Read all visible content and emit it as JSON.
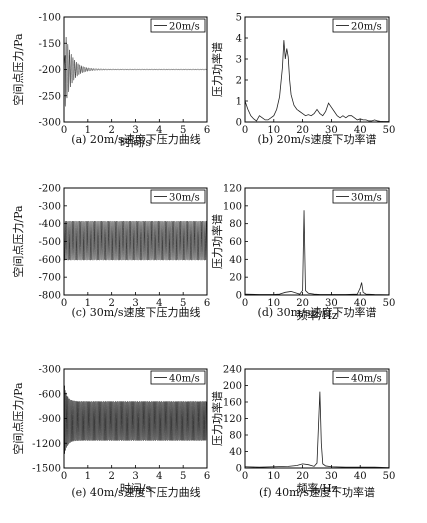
{
  "panels": [
    {
      "id": "a",
      "caption": "(a) 20m/s速度下压力曲线",
      "chart_data": {
        "type": "line",
        "title": "",
        "xlabel": "时间/s",
        "ylabel": "空间点压力/Pa",
        "xlim": [
          0,
          6
        ],
        "ylim": [
          -300,
          -100
        ],
        "xticks": [
          0,
          1,
          2,
          3,
          4,
          5,
          6
        ],
        "yticks": [
          -300,
          -250,
          -200,
          -150,
          -100
        ],
        "series": [
          {
            "name": "20m/s",
            "signal": "damped_oscillation",
            "mean": -200,
            "initial_amplitude": 85,
            "steady_amplitude": 1,
            "frequency_hz": 14
          }
        ],
        "grid": false,
        "legend": "top-right"
      }
    },
    {
      "id": "b",
      "caption": "(b) 20m/s速度下功率谱",
      "chart_data": {
        "type": "line",
        "title": "",
        "xlabel": "",
        "ylabel": "压力功率谱",
        "xlim": [
          0,
          50
        ],
        "ylim": [
          0,
          5
        ],
        "xticks": [
          0,
          10,
          20,
          30,
          40,
          50
        ],
        "yticks": [
          0,
          1,
          2,
          3,
          4,
          5
        ],
        "series": [
          {
            "name": "20m/s",
            "x": [
              0,
              1,
              2,
              3,
              4,
              5,
              6,
              7,
              8,
              9,
              10,
              11,
              12,
              13,
              13.5,
              14,
              14.5,
              15,
              15.5,
              16,
              17,
              18,
              19,
              20,
              21,
              22,
              23,
              24,
              25,
              26,
              27,
              28,
              29,
              30,
              31,
              32,
              33,
              34,
              35,
              36,
              37,
              38,
              39,
              40,
              41,
              42,
              43,
              44,
              45,
              46,
              47,
              48,
              49,
              50
            ],
            "values": [
              1.0,
              0.6,
              0.3,
              0.15,
              0.05,
              0.3,
              0.2,
              0.1,
              0.1,
              0.2,
              0.3,
              0.6,
              1.2,
              2.6,
              3.9,
              3.0,
              3.5,
              3.1,
              2.0,
              1.3,
              0.8,
              0.6,
              0.5,
              0.4,
              0.3,
              0.35,
              0.3,
              0.4,
              0.6,
              0.4,
              0.3,
              0.5,
              0.9,
              0.7,
              0.5,
              0.3,
              0.2,
              0.3,
              0.2,
              0.3,
              0.3,
              0.2,
              0.1,
              0.15,
              0.1,
              0.1,
              0.05,
              0.05,
              0.1,
              0.05,
              0.03,
              0.02,
              0.02,
              0.02
            ]
          }
        ],
        "grid": false,
        "legend": "top-right"
      }
    },
    {
      "id": "c",
      "caption": "(c) 30m/s速度下压力曲线",
      "chart_data": {
        "type": "line",
        "title": "",
        "xlabel": "",
        "ylabel": "空间点压力/Pa",
        "xlim": [
          0,
          6
        ],
        "ylim": [
          -800,
          -200
        ],
        "xticks": [
          0,
          1,
          2,
          3,
          4,
          5,
          6
        ],
        "yticks": [
          -800,
          -700,
          -600,
          -500,
          -400,
          -300,
          -200
        ],
        "series": [
          {
            "name": "30m/s",
            "signal": "steady_oscillation",
            "mean": -495,
            "initial_amplitude": 110,
            "steady_amplitude": 110,
            "frequency_hz": 20.5
          }
        ],
        "grid": false,
        "legend": "top-right"
      }
    },
    {
      "id": "d",
      "caption": "(d) 30m/s速度下功率谱",
      "chart_data": {
        "type": "line",
        "title": "",
        "xlabel": "频率/Hz",
        "ylabel": "压力功率谱",
        "xlim": [
          0,
          50
        ],
        "ylim": [
          0,
          120
        ],
        "xticks": [
          0,
          10,
          20,
          30,
          40,
          50
        ],
        "yticks": [
          0,
          20,
          40,
          60,
          80,
          100,
          120
        ],
        "series": [
          {
            "name": "30m/s",
            "x": [
              0,
              5,
              10,
              12,
              14,
              16,
              18,
              19,
              20,
              20.5,
              21,
              22,
              24,
              26,
              30,
              35,
              39,
              40,
              40.5,
              41,
              42,
              45,
              50
            ],
            "values": [
              1,
              0.5,
              0.5,
              1,
              3,
              4,
              2,
              1,
              5,
              95,
              5,
              2,
              1,
              0.5,
              0.5,
              0.5,
              1,
              8,
              14,
              3,
              1,
              0.5,
              0.3
            ]
          }
        ],
        "grid": false,
        "legend": "top-right"
      }
    },
    {
      "id": "e",
      "caption": "(e) 40m/s速度下压力曲线",
      "chart_data": {
        "type": "line",
        "title": "",
        "xlabel": "时间/s",
        "ylabel": "空间点压力/Pa",
        "xlim": [
          0,
          6
        ],
        "ylim": [
          -1500,
          -300
        ],
        "xticks": [
          0,
          1,
          2,
          3,
          4,
          5,
          6
        ],
        "yticks": [
          -1500,
          -1200,
          -900,
          -600,
          -300
        ],
        "series": [
          {
            "name": "40m/s",
            "signal": "decaying_then_steady",
            "mean": -930,
            "initial_amplitude": 450,
            "steady_amplitude": 240,
            "frequency_hz": 26
          }
        ],
        "grid": false,
        "legend": "top-right"
      }
    },
    {
      "id": "f",
      "caption": "(f) 40m/s速度下功率谱",
      "chart_data": {
        "type": "line",
        "title": "",
        "xlabel": "频率/Hz",
        "ylabel": "压力功率谱",
        "xlim": [
          0,
          50
        ],
        "ylim": [
          0,
          240
        ],
        "xticks": [
          0,
          10,
          20,
          30,
          40,
          50
        ],
        "yticks": [
          0,
          40,
          80,
          120,
          160,
          200,
          240
        ],
        "series": [
          {
            "name": "40m/s",
            "x": [
              0,
              5,
              10,
              15,
              18,
              20,
              22,
              24,
              25,
              26,
              26.5,
              27,
              28,
              30,
              35,
              40,
              45,
              50
            ],
            "values": [
              3,
              2,
              3,
              4,
              6,
              10,
              8,
              4,
              12,
              185,
              60,
              10,
              5,
              3,
              2,
              2,
              2,
              1
            ]
          }
        ],
        "grid": false,
        "legend": "top-right"
      }
    }
  ]
}
